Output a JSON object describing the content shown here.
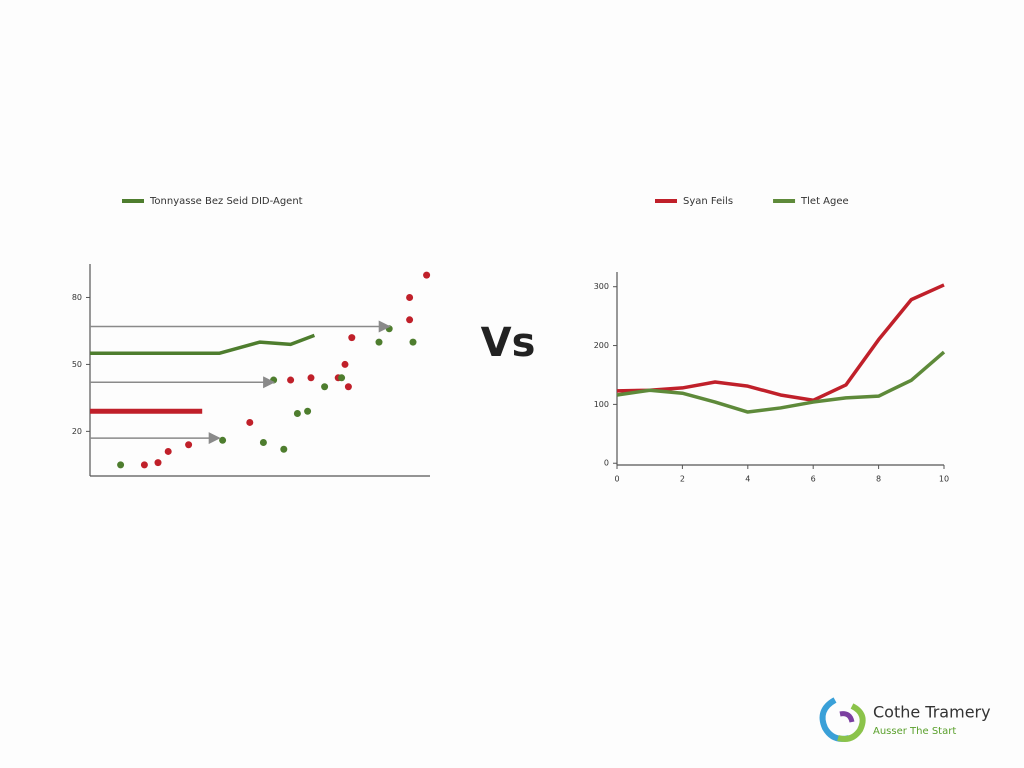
{
  "separator": "Vs",
  "logo": {
    "name": "Cothe Tramery",
    "tagline": "Ausser The Start"
  },
  "chart_data": [
    {
      "type": "scatter",
      "xlim": [
        0,
        10
      ],
      "ylim": [
        0,
        95
      ],
      "yticks": [
        20,
        50,
        80
      ],
      "series": [
        {
          "name": "Tonnyasse Bez Seid DID-Agent",
          "kind": "line",
          "color": "#4e7d2e",
          "x": [
            0,
            3.8,
            5,
            5.9,
            6.6
          ],
          "values": [
            55,
            55,
            60,
            59,
            63
          ]
        },
        {
          "kind": "point",
          "color": "#c0202a",
          "x": [
            1.6,
            2.0,
            2.3,
            2.9,
            4.7,
            5.9,
            6.5,
            7.3,
            7.6,
            7.5,
            7.7,
            9.4,
            9.4,
            9.9
          ],
          "values": [
            5,
            6,
            11,
            14,
            24,
            43,
            44,
            44,
            40,
            50,
            62,
            80,
            70,
            90
          ]
        },
        {
          "kind": "point",
          "color": "#4e7d2e",
          "x": [
            0.9,
            3.9,
            5.1,
            5.7,
            6.1,
            6.4,
            6.9,
            7.4,
            8.5,
            8.8,
            9.5,
            5.4
          ],
          "values": [
            5,
            16,
            15,
            12,
            28,
            29,
            40,
            44,
            60,
            66,
            60,
            43
          ]
        },
        {
          "kind": "hline",
          "arrow": true,
          "color": "#8a8a8a",
          "values": [
            67,
            42,
            17
          ],
          "x_end": [
            8.8,
            5.4,
            3.8
          ]
        },
        {
          "kind": "hline",
          "arrow": false,
          "color": "#c0202a",
          "values": [
            29
          ],
          "x_end": [
            3.3
          ]
        }
      ]
    },
    {
      "type": "line",
      "xlim": [
        0,
        10
      ],
      "xticks": [
        0,
        2,
        4,
        6,
        8,
        10
      ],
      "ylim": [
        -3,
        325
      ],
      "yticks": [
        0,
        100,
        200,
        300
      ],
      "series": [
        {
          "name": "Syan Feils",
          "color": "#c0202a",
          "x": [
            0,
            1,
            2,
            3,
            4,
            5,
            6,
            7,
            8,
            9,
            10
          ],
          "values": [
            123,
            124,
            128,
            138,
            131,
            116,
            107,
            133,
            210,
            278,
            303
          ]
        },
        {
          "name": "Tlet Agee",
          "color": "#5e8a3a",
          "x": [
            0,
            1,
            2,
            3,
            4,
            5,
            6,
            7,
            8,
            9,
            10
          ],
          "values": [
            116,
            124,
            119,
            104,
            87,
            94,
            104,
            111,
            114,
            141,
            189
          ]
        }
      ]
    }
  ]
}
